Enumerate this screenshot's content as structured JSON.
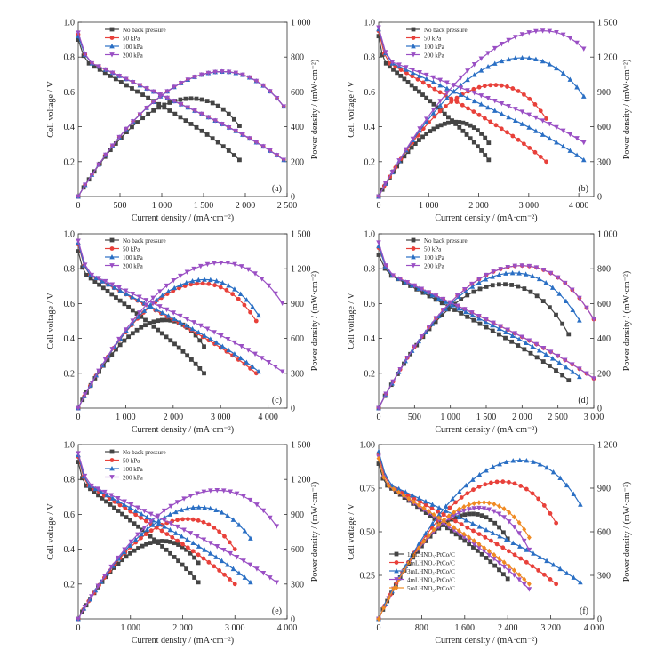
{
  "figure": {
    "ylabel_left": "Cell voltage / V",
    "ylabel_right": "Power density / (mW·cm⁻²)",
    "xlabel": "Current density / (mA·cm⁻²)"
  },
  "chart_data": [
    {
      "type": "line",
      "panel": "(a)",
      "xlim": [
        0,
        2500
      ],
      "xticks": [
        0,
        500,
        1000,
        1500,
        2000,
        2500
      ],
      "xtick_labels": [
        "0",
        "500",
        "1 000",
        "1 500",
        "2 000",
        "2 500"
      ],
      "ylim": [
        0,
        1.0
      ],
      "yticks": [
        0.2,
        0.4,
        0.6,
        0.8,
        1.0
      ],
      "ytick_labels": [
        "0.2",
        "0.4",
        "0.6",
        "0.8",
        "1.0"
      ],
      "y2lim": [
        0,
        1000
      ],
      "y2ticks": [
        0,
        200,
        400,
        600,
        800,
        1000
      ],
      "y2tick_labels": [
        "0",
        "200",
        "400",
        "600",
        "800",
        "1 000"
      ],
      "series": [
        {
          "name": "No back pressure",
          "color": "#444444",
          "marker": "square",
          "i_max": 1930,
          "v0": 0.9,
          "v_end": 0.21
        },
        {
          "name": "50 kPa",
          "color": "#e8403a",
          "marker": "circle",
          "i_max": 2460,
          "v0": 0.93,
          "v_end": 0.21
        },
        {
          "name": "100 kPa",
          "color": "#2a6fc4",
          "marker": "triangle-up",
          "i_max": 2460,
          "v0": 0.92,
          "v_end": 0.21
        },
        {
          "name": "200 kPa",
          "color": "#9a4fc4",
          "marker": "triangle-down",
          "i_max": 2460,
          "v0": 0.94,
          "v_end": 0.21
        }
      ]
    },
    {
      "type": "line",
      "panel": "(b)",
      "xlim": [
        0,
        4300
      ],
      "xticks": [
        0,
        1000,
        2000,
        3000,
        4000
      ],
      "xtick_labels": [
        "0",
        "1 000",
        "2 000",
        "3 000",
        "4 000"
      ],
      "ylim": [
        0,
        1.0
      ],
      "yticks": [
        0.2,
        0.4,
        0.6,
        0.8,
        1.0
      ],
      "ytick_labels": [
        "0.2",
        "0.4",
        "0.6",
        "0.8",
        "1.0"
      ],
      "y2lim": [
        0,
        1500
      ],
      "y2ticks": [
        0,
        300,
        600,
        900,
        1200,
        1500
      ],
      "y2tick_labels": [
        "0",
        "300",
        "600",
        "900",
        "1 200",
        "1 500"
      ],
      "series": [
        {
          "name": "No back pressure",
          "color": "#444444",
          "marker": "square",
          "i_max": 2200,
          "v0": 0.92,
          "v_end": 0.21
        },
        {
          "name": "50 kPa",
          "color": "#e8403a",
          "marker": "circle",
          "i_max": 3350,
          "v0": 0.95,
          "v_end": 0.2
        },
        {
          "name": "100 kPa",
          "color": "#2a6fc4",
          "marker": "triangle-up",
          "i_max": 4100,
          "v0": 0.96,
          "v_end": 0.21
        },
        {
          "name": "200 kPa",
          "color": "#9a4fc4",
          "marker": "triangle-down",
          "i_max": 4100,
          "v0": 0.97,
          "v_end": 0.31
        }
      ]
    },
    {
      "type": "line",
      "panel": "(c)",
      "xlim": [
        0,
        4400
      ],
      "xticks": [
        0,
        1000,
        2000,
        3000,
        4000
      ],
      "xtick_labels": [
        "0",
        "1 000",
        "2 000",
        "3 000",
        "4 000"
      ],
      "ylim": [
        0,
        1.0
      ],
      "yticks": [
        0.2,
        0.4,
        0.6,
        0.8,
        1.0
      ],
      "ytick_labels": [
        "0.2",
        "0.4",
        "0.6",
        "0.8",
        "1.0"
      ],
      "y2lim": [
        0,
        1500
      ],
      "y2ticks": [
        0,
        300,
        600,
        900,
        1200,
        1500
      ],
      "y2tick_labels": [
        "0",
        "300",
        "600",
        "900",
        "1 200",
        "1 500"
      ],
      "series": [
        {
          "name": "No back pressure",
          "color": "#444444",
          "marker": "square",
          "i_max": 2650,
          "v0": 0.9,
          "v_end": 0.2
        },
        {
          "name": "50 kPa",
          "color": "#e8403a",
          "marker": "circle",
          "i_max": 3750,
          "v0": 0.94,
          "v_end": 0.2
        },
        {
          "name": "100 kPa",
          "color": "#2a6fc4",
          "marker": "triangle-up",
          "i_max": 3800,
          "v0": 0.95,
          "v_end": 0.21
        },
        {
          "name": "200 kPa",
          "color": "#9a4fc4",
          "marker": "triangle-down",
          "i_max": 4300,
          "v0": 0.96,
          "v_end": 0.21
        }
      ]
    },
    {
      "type": "line",
      "panel": "(d)",
      "xlim": [
        0,
        3000
      ],
      "xticks": [
        0,
        500,
        1000,
        1500,
        2000,
        2500,
        3000
      ],
      "xtick_labels": [
        "0",
        "500",
        "1 000",
        "1 500",
        "2 000",
        "2 500",
        "3 000"
      ],
      "ylim": [
        0,
        1.0
      ],
      "yticks": [
        0.2,
        0.4,
        0.6,
        0.8,
        1.0
      ],
      "ytick_labels": [
        "0.2",
        "0.4",
        "0.6",
        "0.8",
        "1.0"
      ],
      "y2lim": [
        0,
        1000
      ],
      "y2ticks": [
        0,
        200,
        400,
        600,
        800,
        1000
      ],
      "y2tick_labels": [
        "0",
        "200",
        "400",
        "600",
        "800",
        "1 000"
      ],
      "series": [
        {
          "name": "No back pressure",
          "color": "#444444",
          "marker": "square",
          "i_max": 2650,
          "v0": 0.88,
          "v_end": 0.16
        },
        {
          "name": "50 kPa",
          "color": "#e8403a",
          "marker": "circle",
          "i_max": 3000,
          "v0": 0.92,
          "v_end": 0.17
        },
        {
          "name": "100 kPa",
          "color": "#2a6fc4",
          "marker": "triangle-up",
          "i_max": 2800,
          "v0": 0.93,
          "v_end": 0.18
        },
        {
          "name": "200 kPa",
          "color": "#9a4fc4",
          "marker": "triangle-down",
          "i_max": 3000,
          "v0": 0.95,
          "v_end": 0.17
        }
      ]
    },
    {
      "type": "line",
      "panel": "(e)",
      "xlim": [
        0,
        4000
      ],
      "xticks": [
        0,
        1000,
        2000,
        3000,
        4000
      ],
      "xtick_labels": [
        "0",
        "1 000",
        "2 000",
        "3 000",
        "4 000"
      ],
      "ylim": [
        0,
        1.0
      ],
      "yticks": [
        0.2,
        0.4,
        0.6,
        0.8,
        1.0
      ],
      "ytick_labels": [
        "0.2",
        "0.4",
        "0.6",
        "0.8",
        "1.0"
      ],
      "y2lim": [
        0,
        1500
      ],
      "y2ticks": [
        0,
        300,
        600,
        900,
        1200,
        1500
      ],
      "y2tick_labels": [
        "0",
        "300",
        "600",
        "900",
        "1 200",
        "1 500"
      ],
      "series": [
        {
          "name": "No back pressure",
          "color": "#444444",
          "marker": "square",
          "i_max": 2300,
          "v0": 0.9,
          "v_end": 0.21
        },
        {
          "name": "50 kPa",
          "color": "#e8403a",
          "marker": "circle",
          "i_max": 3000,
          "v0": 0.93,
          "v_end": 0.2
        },
        {
          "name": "100 kPa",
          "color": "#2a6fc4",
          "marker": "triangle-up",
          "i_max": 3300,
          "v0": 0.94,
          "v_end": 0.21
        },
        {
          "name": "200 kPa",
          "color": "#9a4fc4",
          "marker": "triangle-down",
          "i_max": 3800,
          "v0": 0.95,
          "v_end": 0.21
        }
      ]
    },
    {
      "type": "line",
      "panel": "(f)",
      "xlim": [
        0,
        4000
      ],
      "xticks": [
        0,
        800,
        1600,
        2400,
        3200,
        4000
      ],
      "xtick_labels": [
        "0",
        "800",
        "1 600",
        "2 400",
        "3 200",
        "4 000"
      ],
      "ylim": [
        0,
        1.0
      ],
      "yticks": [
        0.25,
        0.5,
        0.75,
        1.0
      ],
      "ytick_labels": [
        "0.25",
        "0.50",
        "0.75",
        "1.00"
      ],
      "y2lim": [
        0,
        1200
      ],
      "y2ticks": [
        0,
        300,
        600,
        900,
        1200
      ],
      "y2tick_labels": [
        "0",
        "300",
        "600",
        "900",
        "1 200"
      ],
      "legend_placement": "bottom-left",
      "series": [
        {
          "name": "1mLHNO₃-PtCo/C",
          "color": "#444444",
          "marker": "square",
          "i_max": 2400,
          "v0": 0.89,
          "v_end": 0.23
        },
        {
          "name": "2mLHNO₃-PtCo/C",
          "color": "#e8403a",
          "marker": "circle",
          "i_max": 3300,
          "v0": 0.95,
          "v_end": 0.2
        },
        {
          "name": "3mLHNO₃-PtCo/C",
          "color": "#2a6fc4",
          "marker": "triangle-up",
          "i_max": 3750,
          "v0": 0.96,
          "v_end": 0.21
        },
        {
          "name": "4mLHNO₃-PtCo/C",
          "color": "#9a4fc4",
          "marker": "triangle-down",
          "i_max": 2800,
          "v0": 0.93,
          "v_end": 0.17
        },
        {
          "name": "5mLHNO₃-PtCo/C",
          "color": "#f08a22",
          "marker": "diamond",
          "i_max": 2800,
          "v0": 0.92,
          "v_end": 0.2
        }
      ]
    }
  ]
}
